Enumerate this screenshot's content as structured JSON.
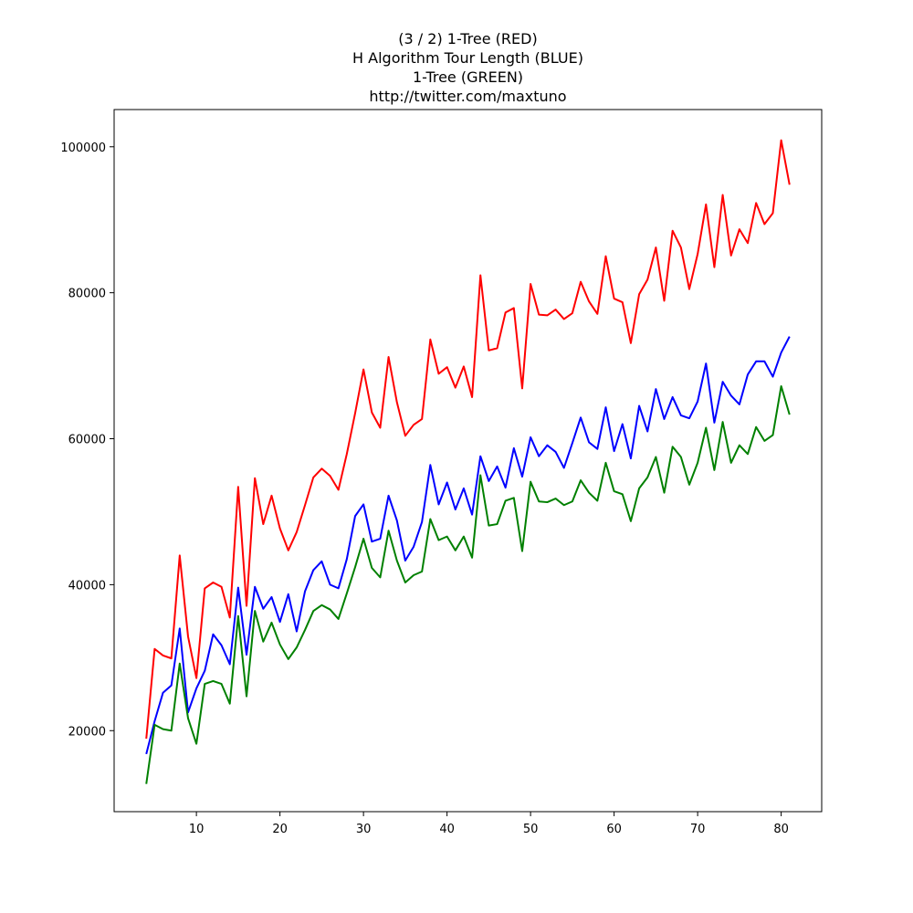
{
  "chart_data": {
    "type": "line",
    "title_lines": [
      "(3 / 2) 1-Tree (RED)",
      "H Algorithm Tour Length (BLUE)",
      "1-Tree (GREEN)",
      "http://twitter.com/maxtuno"
    ],
    "xlabel": "",
    "ylabel": "",
    "xlim": [
      0.15,
      84.85
    ],
    "ylim": [
      8900,
      105100
    ],
    "xticks": [
      10,
      20,
      30,
      40,
      50,
      60,
      70,
      80
    ],
    "yticks": [
      20000,
      40000,
      60000,
      80000,
      100000
    ],
    "grid": false,
    "x": [
      4,
      5,
      6,
      7,
      8,
      9,
      10,
      11,
      12,
      13,
      14,
      15,
      16,
      17,
      18,
      19,
      20,
      21,
      22,
      23,
      24,
      25,
      26,
      27,
      28,
      29,
      30,
      31,
      32,
      33,
      34,
      35,
      36,
      37,
      38,
      39,
      40,
      41,
      42,
      43,
      44,
      45,
      46,
      47,
      48,
      49,
      50,
      51,
      52,
      53,
      54,
      55,
      56,
      57,
      58,
      59,
      60,
      61,
      62,
      63,
      64,
      65,
      66,
      67,
      68,
      69,
      70,
      71,
      72,
      73,
      74,
      75,
      76,
      77,
      78,
      79,
      80,
      81
    ],
    "series": [
      {
        "color": "#ff0000",
        "values": [
          18900,
          31200,
          30300,
          29900,
          44000,
          32900,
          27200,
          39500,
          40300,
          39700,
          35500,
          53400,
          37100,
          54600,
          48300,
          52200,
          47700,
          44700,
          47200,
          50900,
          54700,
          55900,
          54900,
          53000,
          57900,
          63500,
          69500,
          63600,
          61500,
          71200,
          65000,
          60400,
          61900,
          62700,
          73600,
          68900,
          69800,
          67000,
          69900,
          65700,
          82400,
          72100,
          72400,
          77300,
          77900,
          66900,
          81200,
          77000,
          76900,
          77700,
          76400,
          77200,
          81500,
          78800,
          77100,
          85000,
          79200,
          78700,
          73100,
          79800,
          81800,
          86200,
          78900,
          88500,
          86200,
          80500,
          85300,
          92100,
          83500,
          93400,
          85100,
          88700,
          86800,
          92300,
          89400,
          90900,
          100900,
          94800
        ]
      },
      {
        "color": "#0000ff",
        "values": [
          16800,
          21300,
          25200,
          26200,
          34000,
          22500,
          25800,
          28200,
          33200,
          31700,
          29100,
          39600,
          30400,
          39700,
          36700,
          38300,
          34900,
          38700,
          33600,
          39100,
          42000,
          43200,
          40000,
          39500,
          43500,
          49400,
          51000,
          45900,
          46300,
          52200,
          48800,
          43300,
          45200,
          48600,
          56400,
          51000,
          54000,
          50300,
          53200,
          49600,
          57600,
          54200,
          56200,
          53300,
          58700,
          54800,
          60200,
          57600,
          59100,
          58200,
          56000,
          59400,
          62900,
          59500,
          58600,
          64300,
          58300,
          62000,
          57300,
          64500,
          61000,
          66800,
          62700,
          65700,
          63200,
          62800,
          65100,
          70300,
          62200,
          67800,
          65900,
          64700,
          68800,
          70600,
          70600,
          68500,
          71800,
          74000
        ]
      },
      {
        "color": "#008000",
        "values": [
          12700,
          20800,
          20200,
          20000,
          29200,
          21700,
          18200,
          26400,
          26800,
          26400,
          23700,
          35700,
          24700,
          36400,
          32200,
          34800,
          31800,
          29800,
          31400,
          33800,
          36400,
          37200,
          36600,
          35300,
          38800,
          42400,
          46300,
          42300,
          41000,
          47400,
          43300,
          40300,
          41300,
          41800,
          49000,
          46100,
          46600,
          44700,
          46600,
          43700,
          55000,
          48100,
          48300,
          51500,
          51900,
          44600,
          54100,
          51400,
          51300,
          51800,
          50900,
          51400,
          54300,
          52600,
          51500,
          56700,
          52800,
          52400,
          48700,
          53200,
          54700,
          57500,
          52600,
          58900,
          57500,
          53700,
          56700,
          61500,
          55700,
          62300,
          56700,
          59100,
          57900,
          61600,
          59700,
          60500,
          67200,
          63300
        ]
      }
    ]
  }
}
